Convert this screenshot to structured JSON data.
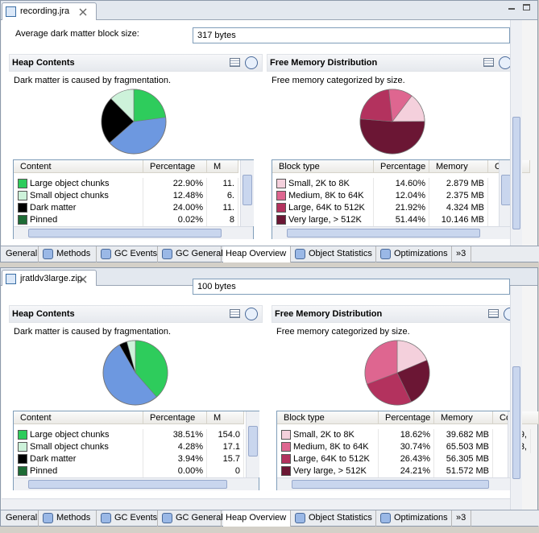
{
  "panels": [
    {
      "tab": "recording.jra",
      "avg_label": "Average dark matter block size:",
      "avg_value": "317 bytes",
      "heap": {
        "title": "Heap Contents",
        "description": "Dark matter is caused by fragmentation.",
        "columns": [
          "Content",
          "Percentage",
          "M"
        ],
        "rows": [
          [
            "Large object chunks",
            "22.90%",
            "11."
          ],
          [
            "Small object chunks",
            "12.48%",
            "6."
          ],
          [
            "Dark matter",
            "24.00%",
            "11."
          ],
          [
            "Pinned",
            "0.02%",
            "8"
          ]
        ]
      },
      "free": {
        "title": "Free Memory Distribution",
        "description": "Free memory categorized by size.",
        "columns": [
          "Block type",
          "Percentage",
          "Memory",
          "C"
        ],
        "rows": [
          [
            "Small, 2K to 8K",
            "14.60%",
            "2.879 MB"
          ],
          [
            "Medium, 8K to 64K",
            "12.04%",
            "2.375 MB"
          ],
          [
            "Large, 64K to 512K",
            "21.92%",
            "4.324 MB"
          ],
          [
            "Very large, > 512K",
            "51.44%",
            "10.146 MB"
          ]
        ]
      },
      "tabs": [
        "General",
        "Methods",
        "GC Events",
        "GC General",
        "Heap Overview",
        "Object Statistics",
        "Optimizations",
        "»3"
      ]
    },
    {
      "tab": "jratldv3large.zip",
      "avg_value": "100 bytes",
      "heap": {
        "title": "Heap Contents",
        "description": "Dark matter is caused by fragmentation.",
        "columns": [
          "Content",
          "Percentage",
          "M"
        ],
        "rows": [
          [
            "Large object chunks",
            "38.51%",
            "154.0"
          ],
          [
            "Small object chunks",
            "4.28%",
            "17.1"
          ],
          [
            "Dark matter",
            "3.94%",
            "15.7"
          ],
          [
            "Pinned",
            "0.00%",
            "0"
          ]
        ]
      },
      "free": {
        "title": "Free Memory Distribution",
        "description": "Free memory categorized by size.",
        "columns": [
          "Block type",
          "Percentage",
          "Memory",
          "Co"
        ],
        "rows": [
          [
            "Small, 2K to 8K",
            "18.62%",
            "39.682 MB",
            "9,"
          ],
          [
            "Medium, 8K to 64K",
            "30.74%",
            "65.503 MB",
            "3,"
          ],
          [
            "Large, 64K to 512K",
            "26.43%",
            "56.305 MB"
          ],
          [
            "Very large, > 512K",
            "24.21%",
            "51.572 MB"
          ]
        ]
      },
      "tabs": [
        "General",
        "Methods",
        "GC Events",
        "GC General",
        "Heap Overview",
        "Object Statistics",
        "Optimizations",
        "»3"
      ]
    }
  ]
}
